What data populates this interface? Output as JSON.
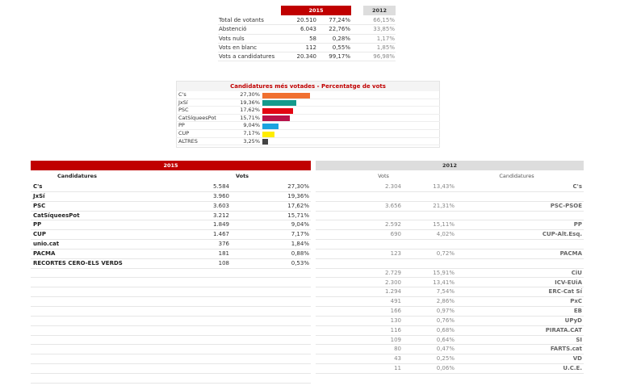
{
  "summary": {
    "year_2015": "2015",
    "year_2012": "2012",
    "rows": [
      {
        "label": "Total de votants",
        "v2015": "20.510",
        "p2015": "77,24%",
        "p2012": "66,15%"
      },
      {
        "label": "Abstenció",
        "v2015": "6.043",
        "p2015": "22,76%",
        "p2012": "33,85%"
      },
      {
        "label": "Vots nuls",
        "v2015": "58",
        "p2015": "0,28%",
        "p2012": "1,17%"
      },
      {
        "label": "Vots en blanc",
        "v2015": "112",
        "p2015": "0,55%",
        "p2012": "1,85%"
      },
      {
        "label": "Vots a candidatures",
        "v2015": "20.340",
        "p2015": "99,17%",
        "p2012": "96,98%"
      }
    ]
  },
  "bar_chart": {
    "title": "Candidatures més votades - Percentatge de vots",
    "items": [
      {
        "label": "C's",
        "pct_text": "27,30%",
        "value": 27.3,
        "color": "#f07030"
      },
      {
        "label": "JxSí",
        "pct_text": "19,36%",
        "value": 19.36,
        "color": "#159a8c"
      },
      {
        "label": "PSC",
        "pct_text": "17,62%",
        "value": 17.62,
        "color": "#e30613"
      },
      {
        "label": "CatSíqueesPot",
        "pct_text": "15,71%",
        "value": 15.71,
        "color": "#b8124a"
      },
      {
        "label": "PP",
        "pct_text": "9,04%",
        "value": 9.04,
        "color": "#1ba3e0"
      },
      {
        "label": "CUP",
        "pct_text": "7,17%",
        "value": 7.17,
        "color": "#ffed00"
      },
      {
        "label": "ALTRES",
        "pct_text": "3,25%",
        "value": 3.25,
        "color": "#444444"
      }
    ]
  },
  "results_2015": {
    "year": "2015",
    "col_candidatures": "Candidatures",
    "col_vots": "Vots",
    "rows": [
      {
        "name": "C's",
        "votes": "5.584",
        "pct": "27,30%"
      },
      {
        "name": "JxSí",
        "votes": "3.960",
        "pct": "19,36%"
      },
      {
        "name": "PSC",
        "votes": "3.603",
        "pct": "17,62%"
      },
      {
        "name": "CatSíqueesPot",
        "votes": "3.212",
        "pct": "15,71%"
      },
      {
        "name": "PP",
        "votes": "1.849",
        "pct": "9,04%"
      },
      {
        "name": "CUP",
        "votes": "1.467",
        "pct": "7,17%"
      },
      {
        "name": "unio.cat",
        "votes": "376",
        "pct": "1,84%"
      },
      {
        "name": "PACMA",
        "votes": "181",
        "pct": "0,88%"
      },
      {
        "name": "RECORTES CERO-ELS VERDS",
        "votes": "108",
        "pct": "0,53%"
      },
      {},
      {},
      {},
      {},
      {},
      {},
      {},
      {},
      {},
      {},
      {},
      {}
    ]
  },
  "results_2012": {
    "year": "2012",
    "col_vots": "Vots",
    "col_candidatures": "Candidatures",
    "rows": [
      {
        "name": "C's",
        "votes": "2.304",
        "pct": "13,43%"
      },
      {},
      {
        "name": "PSC-PSOE",
        "votes": "3.656",
        "pct": "21,31%"
      },
      {},
      {
        "name": "PP",
        "votes": "2.592",
        "pct": "15,11%"
      },
      {
        "name": "CUP-Alt.Esq.",
        "votes": "690",
        "pct": "4,02%"
      },
      {},
      {
        "name": "PACMA",
        "votes": "123",
        "pct": "0,72%"
      },
      {},
      {
        "name": "CiU",
        "votes": "2.729",
        "pct": "15,91%"
      },
      {
        "name": "ICV-EUiA",
        "votes": "2.300",
        "pct": "13,41%"
      },
      {
        "name": "ERC-Cat Sí",
        "votes": "1.294",
        "pct": "7,54%"
      },
      {
        "name": "PxC",
        "votes": "491",
        "pct": "2,86%"
      },
      {
        "name": "EB",
        "votes": "166",
        "pct": "0,97%"
      },
      {
        "name": "UPyD",
        "votes": "130",
        "pct": "0,76%"
      },
      {
        "name": "PIRATA.CAT",
        "votes": "116",
        "pct": "0,68%"
      },
      {
        "name": "SI",
        "votes": "109",
        "pct": "0,64%"
      },
      {
        "name": "FARTS.cat",
        "votes": "80",
        "pct": "0,47%"
      },
      {
        "name": "VD",
        "votes": "43",
        "pct": "0,25%"
      },
      {
        "name": "U.C.E.",
        "votes": "11",
        "pct": "0,06%"
      }
    ]
  }
}
